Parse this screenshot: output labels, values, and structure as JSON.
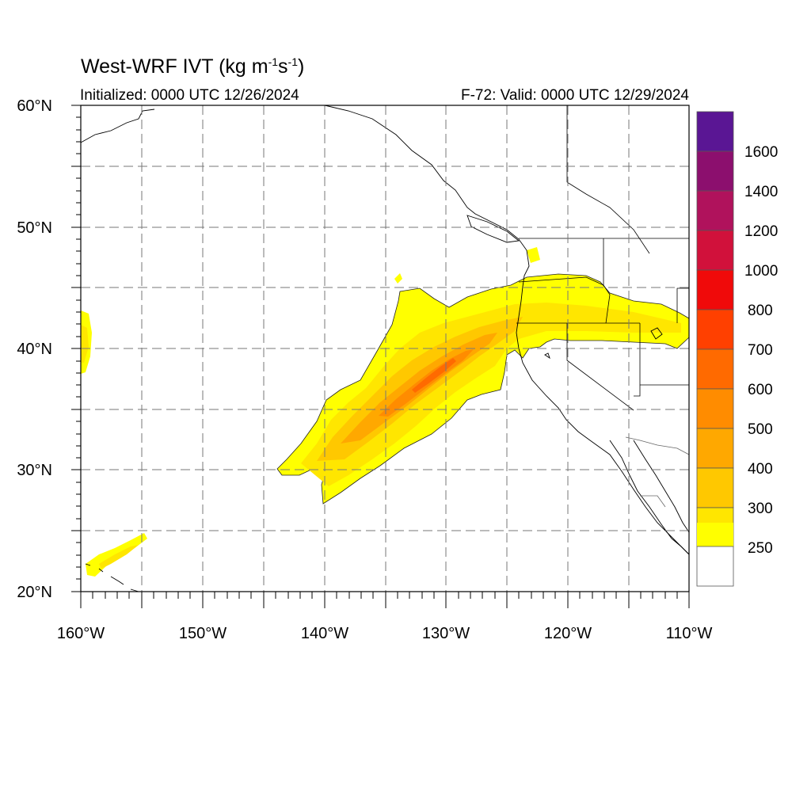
{
  "title": {
    "prefix": "West-WRF IVT (kg m",
    "exp1": "-1",
    "mid": "s",
    "exp2": "-1",
    "suffix": ")"
  },
  "subtitle_left": "Initialized: 0000 UTC 12/26/2024",
  "subtitle_right": "F-72: Valid: 0000 UTC 12/29/2024",
  "map": {
    "lon_range": [
      -160,
      -110
    ],
    "lat_range": [
      20,
      60
    ],
    "projection": "cylindrical equidistant",
    "grid": "dashed gray every 5 degrees",
    "lat_ticks": [
      "20°N",
      "30°N",
      "40°N",
      "50°N",
      "60°N"
    ],
    "lon_ticks": [
      "160°W",
      "150°W",
      "140°W",
      "130°W",
      "120°W",
      "110°W"
    ],
    "features": [
      "coastlines",
      "US state boundaries",
      "Canada–US border",
      "Mexico states"
    ]
  },
  "colorbar": {
    "labels": [
      "250",
      "300",
      "400",
      "500",
      "600",
      "700",
      "800",
      "1000",
      "1200",
      "1400",
      "1600"
    ],
    "colors": [
      "#ffffff",
      "#ffff00",
      "#ffe600",
      "#ffc800",
      "#ffa800",
      "#ff8c00",
      "#ff6a00",
      "#ff4000",
      "#f00a0a",
      "#d1113b",
      "#b0125c",
      "#8c0f6e",
      "#5a1694"
    ]
  },
  "features": [
    {
      "name": "atmospheric river",
      "region": "30°N–46°N, 145°W–110°W",
      "max_category": "700-800"
    },
    {
      "name": "Hawaii moisture patch",
      "region": "21°N–25°N, 160°W–155°W",
      "max_category": "300-400"
    },
    {
      "name": "western edge patch",
      "region": "38°N–43°N, 160°W",
      "max_category": "300-400"
    }
  ]
}
